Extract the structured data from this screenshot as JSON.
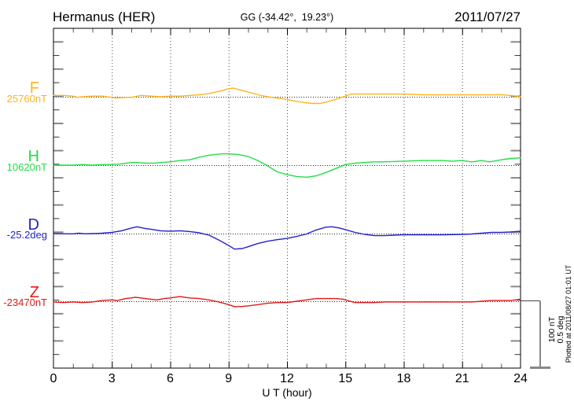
{
  "header": {
    "station": "Hermanus (HER)",
    "coords": "GG (-34.42°,  19.23°)",
    "date": "2011/07/27"
  },
  "side": {
    "plotted_note": "Plotted at 2011/08/27 01:01 UT",
    "scale_labels": [
      "100 nT",
      "0.5 deg"
    ]
  },
  "chart_data": {
    "type": "line",
    "title": "Hermanus (HER) magnetogram 2011/07/27",
    "xlabel": "U T (hour)",
    "x_unit": "hour (UT)",
    "x_range": [
      0,
      24
    ],
    "x_ticks": [
      0,
      3,
      6,
      9,
      12,
      15,
      18,
      21,
      24
    ],
    "grid": {
      "vertical_dotted_every_hours": 3,
      "dotted_baseline_per_trace": true,
      "legend": "none"
    },
    "scale_bar": {
      "nT": 100,
      "deg": 0.5
    },
    "series": [
      {
        "label": "F",
        "baseline_label": "25760nT",
        "unit": "nT",
        "baseline_value": 25760,
        "color": "#FFB41E",
        "points": [
          [
            0,
            25762
          ],
          [
            0.5,
            25762
          ],
          [
            1,
            25761
          ],
          [
            1.25,
            25759
          ],
          [
            1.5,
            25760
          ],
          [
            2,
            25761
          ],
          [
            2.5,
            25761
          ],
          [
            3,
            25759
          ],
          [
            3.25,
            25758
          ],
          [
            3.75,
            25759
          ],
          [
            4,
            25759
          ],
          [
            4.5,
            25762
          ],
          [
            5,
            25761
          ],
          [
            5.5,
            25760
          ],
          [
            6,
            25761
          ],
          [
            6.5,
            25761
          ],
          [
            7,
            25762
          ],
          [
            7.5,
            25763
          ],
          [
            8,
            25765
          ],
          [
            8.5,
            25768
          ],
          [
            9,
            25772
          ],
          [
            9.25,
            25773
          ],
          [
            9.5,
            25771
          ],
          [
            10,
            25767
          ],
          [
            10.5,
            25763
          ],
          [
            11,
            25760
          ],
          [
            11.5,
            25758
          ],
          [
            12,
            25756
          ],
          [
            12.5,
            25753
          ],
          [
            13,
            25751
          ],
          [
            13.3,
            25750
          ],
          [
            13.7,
            25750
          ],
          [
            14,
            25752
          ],
          [
            14.5,
            25756
          ],
          [
            15,
            25761
          ],
          [
            15.3,
            25764
          ],
          [
            16,
            25764
          ],
          [
            17,
            25764
          ],
          [
            18,
            25764
          ],
          [
            19,
            25763
          ],
          [
            20,
            25763
          ],
          [
            21,
            25763
          ],
          [
            22,
            25763
          ],
          [
            23,
            25763
          ],
          [
            23.5,
            25762
          ],
          [
            24,
            25760
          ]
        ]
      },
      {
        "label": "H",
        "baseline_label": "10620nT",
        "unit": "nT",
        "baseline_value": 10620,
        "color": "#21DE45",
        "points": [
          [
            0,
            10620
          ],
          [
            0.5,
            10620
          ],
          [
            1,
            10620
          ],
          [
            1.5,
            10621
          ],
          [
            2,
            10620
          ],
          [
            2.5,
            10621
          ],
          [
            3,
            10621
          ],
          [
            3.5,
            10622
          ],
          [
            4,
            10624
          ],
          [
            4.25,
            10624
          ],
          [
            4.75,
            10623
          ],
          [
            5.25,
            10623
          ],
          [
            5.5,
            10624
          ],
          [
            6,
            10625
          ],
          [
            6.5,
            10627
          ],
          [
            7,
            10628
          ],
          [
            7.5,
            10632
          ],
          [
            8,
            10635
          ],
          [
            8.3,
            10636
          ],
          [
            8.7,
            10637
          ],
          [
            9,
            10637
          ],
          [
            9.5,
            10636
          ],
          [
            10,
            10633
          ],
          [
            10.5,
            10627
          ],
          [
            11,
            10619
          ],
          [
            11.5,
            10610
          ],
          [
            12,
            10606
          ],
          [
            12.5,
            10603
          ],
          [
            13,
            10602
          ],
          [
            13.5,
            10604
          ],
          [
            14,
            10609
          ],
          [
            14.5,
            10615
          ],
          [
            15,
            10621
          ],
          [
            15.5,
            10623
          ],
          [
            16,
            10624
          ],
          [
            16.5,
            10625
          ],
          [
            17,
            10625
          ],
          [
            18,
            10626
          ],
          [
            19,
            10627
          ],
          [
            19.5,
            10627
          ],
          [
            20,
            10627
          ],
          [
            20.5,
            10626
          ],
          [
            21,
            10627
          ],
          [
            21.5,
            10625
          ],
          [
            22,
            10627
          ],
          [
            22.4,
            10625
          ],
          [
            23,
            10628
          ],
          [
            23.5,
            10630
          ],
          [
            24,
            10631
          ]
        ]
      },
      {
        "label": "D",
        "baseline_label": "-25.2deg",
        "unit": "deg",
        "baseline_value": -25.2,
        "color": "#2222CC",
        "points": [
          [
            0,
            -25.2
          ],
          [
            0.5,
            -25.201
          ],
          [
            1,
            -25.202
          ],
          [
            1.3,
            -25.197
          ],
          [
            1.6,
            -25.201
          ],
          [
            2,
            -25.2
          ],
          [
            2.5,
            -25.197
          ],
          [
            3,
            -25.191
          ],
          [
            3.5,
            -25.179
          ],
          [
            4,
            -25.158
          ],
          [
            4.3,
            -25.149
          ],
          [
            4.7,
            -25.161
          ],
          [
            5,
            -25.167
          ],
          [
            5.5,
            -25.179
          ],
          [
            6,
            -25.182
          ],
          [
            6.5,
            -25.179
          ],
          [
            7,
            -25.185
          ],
          [
            7.5,
            -25.194
          ],
          [
            8,
            -25.212
          ],
          [
            8.5,
            -25.248
          ],
          [
            9,
            -25.289
          ],
          [
            9.3,
            -25.316
          ],
          [
            9.7,
            -25.312
          ],
          [
            10,
            -25.298
          ],
          [
            10.5,
            -25.274
          ],
          [
            11,
            -25.257
          ],
          [
            11.5,
            -25.245
          ],
          [
            12,
            -25.236
          ],
          [
            12.5,
            -25.221
          ],
          [
            13,
            -25.203
          ],
          [
            13.5,
            -25.173
          ],
          [
            14,
            -25.152
          ],
          [
            14.3,
            -25.149
          ],
          [
            14.7,
            -25.158
          ],
          [
            15,
            -25.17
          ],
          [
            15.5,
            -25.191
          ],
          [
            16,
            -25.206
          ],
          [
            16.5,
            -25.215
          ],
          [
            17,
            -25.215
          ],
          [
            17.5,
            -25.212
          ],
          [
            18,
            -25.209
          ],
          [
            19,
            -25.209
          ],
          [
            20,
            -25.209
          ],
          [
            21,
            -25.206
          ],
          [
            21.5,
            -25.203
          ],
          [
            22,
            -25.197
          ],
          [
            22.5,
            -25.191
          ],
          [
            23,
            -25.191
          ],
          [
            23.5,
            -25.188
          ],
          [
            24,
            -25.182
          ]
        ]
      },
      {
        "label": "Z",
        "baseline_label": "-23470nT",
        "unit": "nT",
        "baseline_value": -23470,
        "color": "#E51717",
        "points": [
          [
            0,
            -23471
          ],
          [
            0.5,
            -23472
          ],
          [
            1,
            -23471
          ],
          [
            1.5,
            -23472
          ],
          [
            2,
            -23471
          ],
          [
            2.5,
            -23469
          ],
          [
            3,
            -23468
          ],
          [
            3.3,
            -23469
          ],
          [
            3.7,
            -23466
          ],
          [
            4,
            -23465
          ],
          [
            4.2,
            -23464
          ],
          [
            4.5,
            -23465
          ],
          [
            5,
            -23467
          ],
          [
            5.3,
            -23468
          ],
          [
            5.7,
            -23466
          ],
          [
            6,
            -23465
          ],
          [
            6.5,
            -23463
          ],
          [
            7,
            -23465
          ],
          [
            7.5,
            -23466
          ],
          [
            8,
            -23468
          ],
          [
            8.5,
            -23471
          ],
          [
            9,
            -23475
          ],
          [
            9.3,
            -23478
          ],
          [
            9.6,
            -23478
          ],
          [
            10,
            -23477
          ],
          [
            10.5,
            -23475
          ],
          [
            11,
            -23473
          ],
          [
            11.5,
            -23472
          ],
          [
            12,
            -23472
          ],
          [
            12.5,
            -23470
          ],
          [
            13,
            -23468
          ],
          [
            13.5,
            -23466
          ],
          [
            14,
            -23466
          ],
          [
            14.5,
            -23466
          ],
          [
            14.9,
            -23467
          ],
          [
            15.1,
            -23469
          ],
          [
            15.5,
            -23472
          ],
          [
            16,
            -23472
          ],
          [
            16.5,
            -23472
          ],
          [
            17,
            -23471
          ],
          [
            17.5,
            -23471
          ],
          [
            18,
            -23471
          ],
          [
            18.5,
            -23471
          ],
          [
            19,
            -23471
          ],
          [
            19.5,
            -23471
          ],
          [
            20,
            -23471
          ],
          [
            20.5,
            -23471
          ],
          [
            21,
            -23471
          ],
          [
            21.5,
            -23471
          ],
          [
            22,
            -23470
          ],
          [
            22.5,
            -23469
          ],
          [
            23,
            -23469
          ],
          [
            23.5,
            -23469
          ],
          [
            24,
            -23467
          ]
        ]
      }
    ]
  }
}
